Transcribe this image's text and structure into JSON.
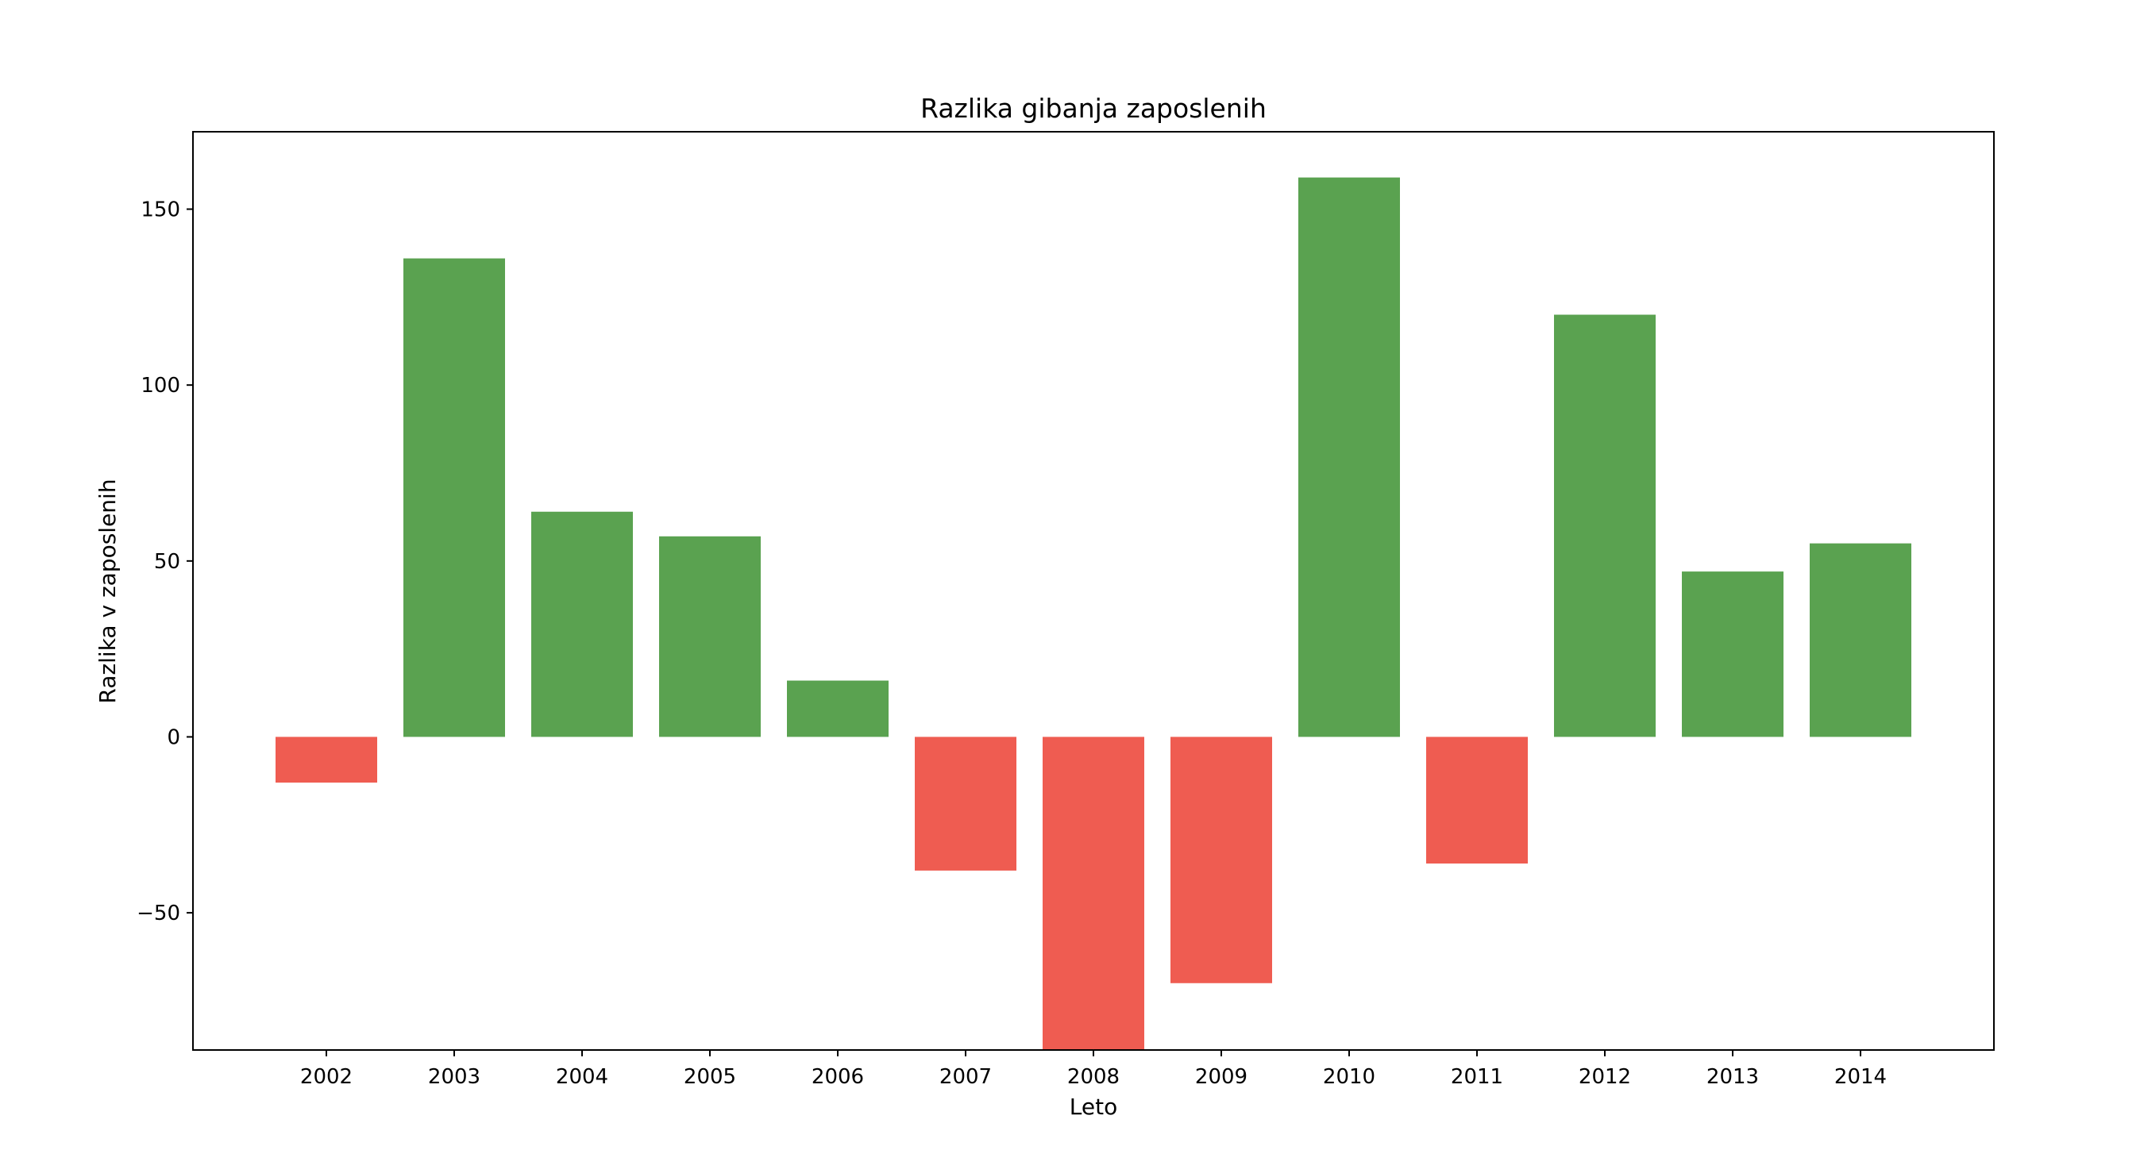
{
  "chart_data": {
    "type": "bar",
    "title": "Razlika gibanja zaposlenih",
    "xlabel": "Leto",
    "ylabel": "Razlika v zaposlenih",
    "categories": [
      "2002",
      "2003",
      "2004",
      "2005",
      "2006",
      "2007",
      "2008",
      "2009",
      "2010",
      "2011",
      "2012",
      "2013",
      "2014"
    ],
    "values": [
      -13,
      136,
      64,
      57,
      16,
      -38,
      -89,
      -70,
      159,
      -36,
      120,
      47,
      55
    ],
    "ylim": [
      -89,
      172
    ],
    "yticks": [
      -50,
      0,
      50,
      100,
      150
    ],
    "ytick_labels": [
      "−50",
      "0",
      "50",
      "100",
      "150"
    ],
    "grid": false,
    "colors": {
      "positive": "#5aa250",
      "negative": "#ef5c51"
    }
  }
}
